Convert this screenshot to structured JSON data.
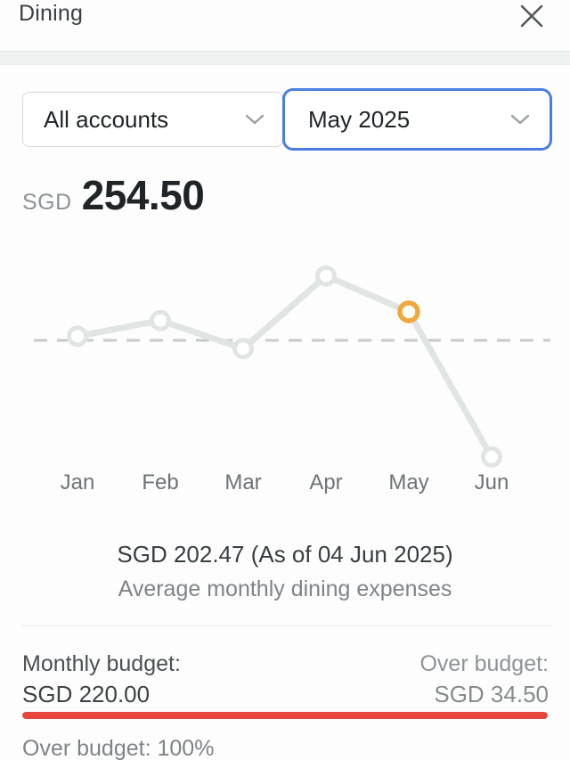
{
  "header": {
    "title": "Dining",
    "close_icon": "x-close"
  },
  "filters": {
    "accounts": {
      "value": "All accounts"
    },
    "month": {
      "value": "May 2025"
    },
    "focus_border_color": "#4a7de2"
  },
  "summary": {
    "currency": "SGD",
    "amount": "254.50"
  },
  "chart_data": {
    "type": "line",
    "categories": [
      "Jan",
      "Feb",
      "Mar",
      "Apr",
      "May",
      "Jun"
    ],
    "values": [
      225,
      244,
      210,
      298,
      254.5,
      79
    ],
    "selected_index": 4,
    "budget_line": 220,
    "title": "",
    "xlabel": "",
    "ylabel": "SGD",
    "legend": "none",
    "grid": false,
    "colors": {
      "line": "#e0e4e3",
      "marker_fill": "#ffffff",
      "selected_marker": "#f0a73c",
      "dashed": "#c6cac9",
      "label": "#6e7376"
    }
  },
  "average": {
    "line1": "SGD 202.47 (As of 04 Jun 2025)",
    "line2": "Average monthly dining expenses"
  },
  "budget": {
    "monthly_label": "Monthly budget:",
    "monthly_value": "SGD 220.00",
    "over_label": "Over budget:",
    "over_value": "SGD 34.50",
    "progress_percent": 100,
    "bar_color": "#e8463d",
    "status_text": "Over budget: 100%"
  }
}
